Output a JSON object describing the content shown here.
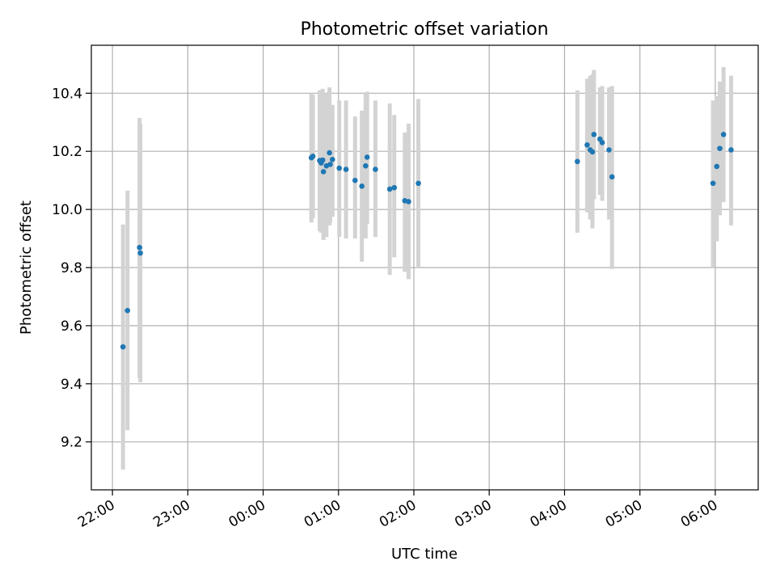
{
  "chart_data": {
    "type": "scatter",
    "title": "Photometric offset variation",
    "xlabel": "UTC time",
    "ylabel": "Photometric offset",
    "xlim": [
      -0.28,
      8.57
    ],
    "ylim": [
      9.035,
      10.565
    ],
    "grid": true,
    "x_ticks": [
      {
        "value": 0,
        "label": "22:00"
      },
      {
        "value": 1,
        "label": "23:00"
      },
      {
        "value": 2,
        "label": "00:00"
      },
      {
        "value": 3,
        "label": "01:00"
      },
      {
        "value": 4,
        "label": "02:00"
      },
      {
        "value": 5,
        "label": "03:00"
      },
      {
        "value": 6,
        "label": "04:00"
      },
      {
        "value": 7,
        "label": "05:00"
      },
      {
        "value": 8,
        "label": "06:00"
      }
    ],
    "y_ticks": [
      {
        "value": 9.2,
        "label": "9.2"
      },
      {
        "value": 9.4,
        "label": "9.4"
      },
      {
        "value": 9.6,
        "label": "9.6"
      },
      {
        "value": 9.8,
        "label": "9.8"
      },
      {
        "value": 10.0,
        "label": "10.0"
      },
      {
        "value": 10.2,
        "label": "10.2"
      },
      {
        "value": 10.4,
        "label": "10.4"
      }
    ],
    "colors": {
      "point": "#1f77b4",
      "errorbar": "#d3d3d3",
      "grid": "#b0b0b0"
    },
    "points": [
      {
        "x": 0.14,
        "y": 9.527,
        "lo": 9.105,
        "hi": 9.948
      },
      {
        "x": 0.2,
        "y": 9.652,
        "lo": 9.24,
        "hi": 10.065
      },
      {
        "x": 0.36,
        "y": 9.869,
        "lo": 9.42,
        "hi": 10.315
      },
      {
        "x": 0.37,
        "y": 9.85,
        "lo": 9.405,
        "hi": 10.295
      },
      {
        "x": 2.64,
        "y": 10.178,
        "lo": 9.955,
        "hi": 10.4
      },
      {
        "x": 2.66,
        "y": 10.183,
        "lo": 9.97,
        "hi": 10.395
      },
      {
        "x": 2.75,
        "y": 10.168,
        "lo": 9.925,
        "hi": 10.41
      },
      {
        "x": 2.77,
        "y": 10.16,
        "lo": 9.92,
        "hi": 10.4
      },
      {
        "x": 2.79,
        "y": 10.17,
        "lo": 9.93,
        "hi": 10.415
      },
      {
        "x": 2.8,
        "y": 10.13,
        "lo": 9.895,
        "hi": 10.37
      },
      {
        "x": 2.84,
        "y": 10.15,
        "lo": 9.905,
        "hi": 10.4
      },
      {
        "x": 2.88,
        "y": 10.195,
        "lo": 9.945,
        "hi": 10.42
      },
      {
        "x": 2.89,
        "y": 10.155,
        "lo": 9.955,
        "hi": 10.36
      },
      {
        "x": 2.92,
        "y": 10.172,
        "lo": 9.975,
        "hi": 10.36
      },
      {
        "x": 3.01,
        "y": 10.142,
        "lo": 9.905,
        "hi": 10.375
      },
      {
        "x": 3.1,
        "y": 10.138,
        "lo": 9.9,
        "hi": 10.375
      },
      {
        "x": 3.22,
        "y": 10.1,
        "lo": 9.9,
        "hi": 10.32
      },
      {
        "x": 3.31,
        "y": 10.08,
        "lo": 9.82,
        "hi": 10.34
      },
      {
        "x": 3.36,
        "y": 10.15,
        "lo": 9.9,
        "hi": 10.4
      },
      {
        "x": 3.38,
        "y": 10.18,
        "lo": 9.95,
        "hi": 10.405
      },
      {
        "x": 3.49,
        "y": 10.138,
        "lo": 9.905,
        "hi": 10.375
      },
      {
        "x": 3.68,
        "y": 10.07,
        "lo": 9.775,
        "hi": 10.365
      },
      {
        "x": 3.74,
        "y": 10.075,
        "lo": 9.835,
        "hi": 10.325
      },
      {
        "x": 3.88,
        "y": 10.03,
        "lo": 9.785,
        "hi": 10.265
      },
      {
        "x": 3.93,
        "y": 10.027,
        "lo": 9.76,
        "hi": 10.295
      },
      {
        "x": 4.06,
        "y": 10.09,
        "lo": 9.8,
        "hi": 10.38
      },
      {
        "x": 6.17,
        "y": 10.165,
        "lo": 9.92,
        "hi": 10.41
      },
      {
        "x": 6.3,
        "y": 10.222,
        "lo": 9.99,
        "hi": 10.45
      },
      {
        "x": 6.34,
        "y": 10.205,
        "lo": 9.965,
        "hi": 10.46
      },
      {
        "x": 6.37,
        "y": 10.198,
        "lo": 9.935,
        "hi": 10.465
      },
      {
        "x": 6.39,
        "y": 10.258,
        "lo": 10.035,
        "hi": 10.48
      },
      {
        "x": 6.47,
        "y": 10.242,
        "lo": 10.05,
        "hi": 10.42
      },
      {
        "x": 6.5,
        "y": 10.23,
        "lo": 10.03,
        "hi": 10.425
      },
      {
        "x": 6.59,
        "y": 10.205,
        "lo": 9.965,
        "hi": 10.42
      },
      {
        "x": 6.63,
        "y": 10.112,
        "lo": 9.795,
        "hi": 10.425
      },
      {
        "x": 7.97,
        "y": 10.09,
        "lo": 9.8,
        "hi": 10.375
      },
      {
        "x": 8.02,
        "y": 10.148,
        "lo": 9.89,
        "hi": 10.39
      },
      {
        "x": 8.06,
        "y": 10.21,
        "lo": 9.98,
        "hi": 10.44
      },
      {
        "x": 8.11,
        "y": 10.258,
        "lo": 10.025,
        "hi": 10.49
      },
      {
        "x": 8.21,
        "y": 10.205,
        "lo": 9.945,
        "hi": 10.46
      }
    ]
  }
}
